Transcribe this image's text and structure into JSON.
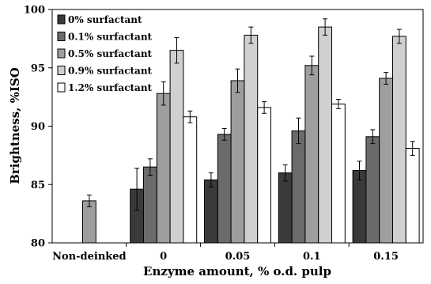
{
  "chart_data": {
    "type": "bar",
    "xlabel": "Enzyme amount, % o.d. pulp",
    "ylabel": "Brightness, %ISO",
    "ylim": [
      80,
      100
    ],
    "yticks": [
      "80",
      "85",
      "90",
      "95",
      "100"
    ],
    "categories": [
      "Non-deinked",
      "0",
      "0.05",
      "0.1",
      "0.15"
    ],
    "legend_position": "top-left",
    "series": [
      {
        "name": "0% surfactant",
        "color": "#3a3a3a",
        "values": [
          null,
          84.6,
          85.4,
          86.0,
          86.2
        ],
        "errors": [
          null,
          1.8,
          0.6,
          0.7,
          0.8
        ]
      },
      {
        "name": "0.1% surfactant",
        "color": "#6b6b6b",
        "values": [
          null,
          86.5,
          89.3,
          89.6,
          89.1
        ],
        "errors": [
          null,
          0.7,
          0.5,
          1.1,
          0.6
        ]
      },
      {
        "name": "0.5% surfactant",
        "color": "#9e9e9e",
        "values": [
          83.6,
          92.8,
          93.9,
          95.2,
          94.1
        ],
        "errors": [
          0.5,
          1.0,
          1.0,
          0.8,
          0.5
        ]
      },
      {
        "name": "0.9% surfactant",
        "color": "#d0d0d0",
        "values": [
          null,
          96.5,
          97.8,
          98.5,
          97.7
        ],
        "errors": [
          null,
          1.1,
          0.7,
          0.7,
          0.6
        ]
      },
      {
        "name": "1.2% surfactant",
        "color": "#ffffff",
        "values": [
          null,
          90.8,
          91.6,
          91.9,
          88.1
        ],
        "errors": [
          null,
          0.5,
          0.5,
          0.4,
          0.6
        ]
      }
    ]
  }
}
